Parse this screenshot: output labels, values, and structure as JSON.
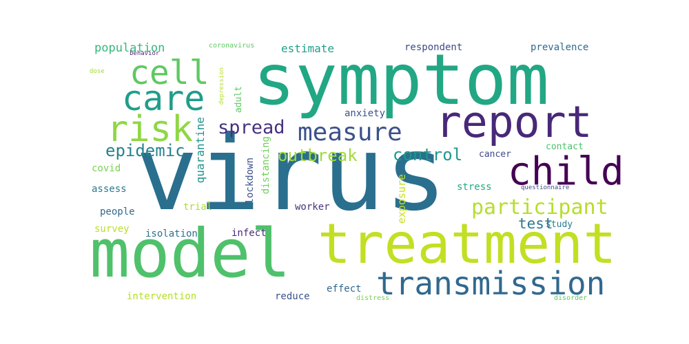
{
  "words": [
    {
      "text": "virus",
      "color": "#2a6f8e"
    },
    {
      "text": "symptom",
      "color": "#22a784"
    },
    {
      "text": "model",
      "color": "#4fc16b"
    },
    {
      "text": "treatment",
      "color": "#c2df23"
    },
    {
      "text": "report",
      "color": "#482878"
    },
    {
      "text": "transmission",
      "color": "#31688e"
    },
    {
      "text": "child",
      "color": "#440154"
    },
    {
      "text": "cell",
      "color": "#5ec962"
    },
    {
      "text": "care",
      "color": "#1f9e89"
    },
    {
      "text": "risk",
      "color": "#8fd744"
    },
    {
      "text": "measure",
      "color": "#3b528b"
    },
    {
      "text": "participant",
      "color": "#b5de2b"
    },
    {
      "text": "spread",
      "color": "#46327e"
    },
    {
      "text": "epidemic",
      "color": "#26828e"
    },
    {
      "text": "outbreak",
      "color": "#a0da39"
    },
    {
      "text": "control",
      "color": "#1f978b"
    },
    {
      "text": "test",
      "color": "#2a788e"
    },
    {
      "text": "population",
      "color": "#35b779"
    },
    {
      "text": "estimate",
      "color": "#1f9e89"
    },
    {
      "text": "respondent",
      "color": "#3e4a89"
    },
    {
      "text": "prevalence",
      "color": "#31688e"
    },
    {
      "text": "behavior",
      "color": "#482878"
    },
    {
      "text": "coronavirus",
      "color": "#5ec962"
    },
    {
      "text": "dose",
      "color": "#a0da39"
    },
    {
      "text": "depression",
      "color": "#b5de2b"
    },
    {
      "text": "adult",
      "color": "#5ec962"
    },
    {
      "text": "quarantine",
      "color": "#21918c"
    },
    {
      "text": "anxiety",
      "color": "#3b528b"
    },
    {
      "text": "cancer",
      "color": "#3e4989"
    },
    {
      "text": "contact",
      "color": "#4ac16d"
    },
    {
      "text": "covid",
      "color": "#7ad151"
    },
    {
      "text": "assess",
      "color": "#2a788e"
    },
    {
      "text": "lockdown",
      "color": "#3b528b"
    },
    {
      "text": "distancing",
      "color": "#6ece58"
    },
    {
      "text": "stress",
      "color": "#22a884"
    },
    {
      "text": "questionnaire",
      "color": "#3e4a89"
    },
    {
      "text": "trial",
      "color": "#addc30"
    },
    {
      "text": "people",
      "color": "#31688e"
    },
    {
      "text": "worker",
      "color": "#46327e"
    },
    {
      "text": "exposure",
      "color": "#c8e020"
    },
    {
      "text": "study",
      "color": "#287c8e"
    },
    {
      "text": "survey",
      "color": "#b5de2b"
    },
    {
      "text": "isolation",
      "color": "#2c728e"
    },
    {
      "text": "infect",
      "color": "#482878"
    },
    {
      "text": "intervention",
      "color": "#b5de2b"
    },
    {
      "text": "reduce",
      "color": "#3b528b"
    },
    {
      "text": "effect",
      "color": "#31688e"
    },
    {
      "text": "distress",
      "color": "#7ad151"
    },
    {
      "text": "disorder",
      "color": "#5ec962"
    }
  ]
}
